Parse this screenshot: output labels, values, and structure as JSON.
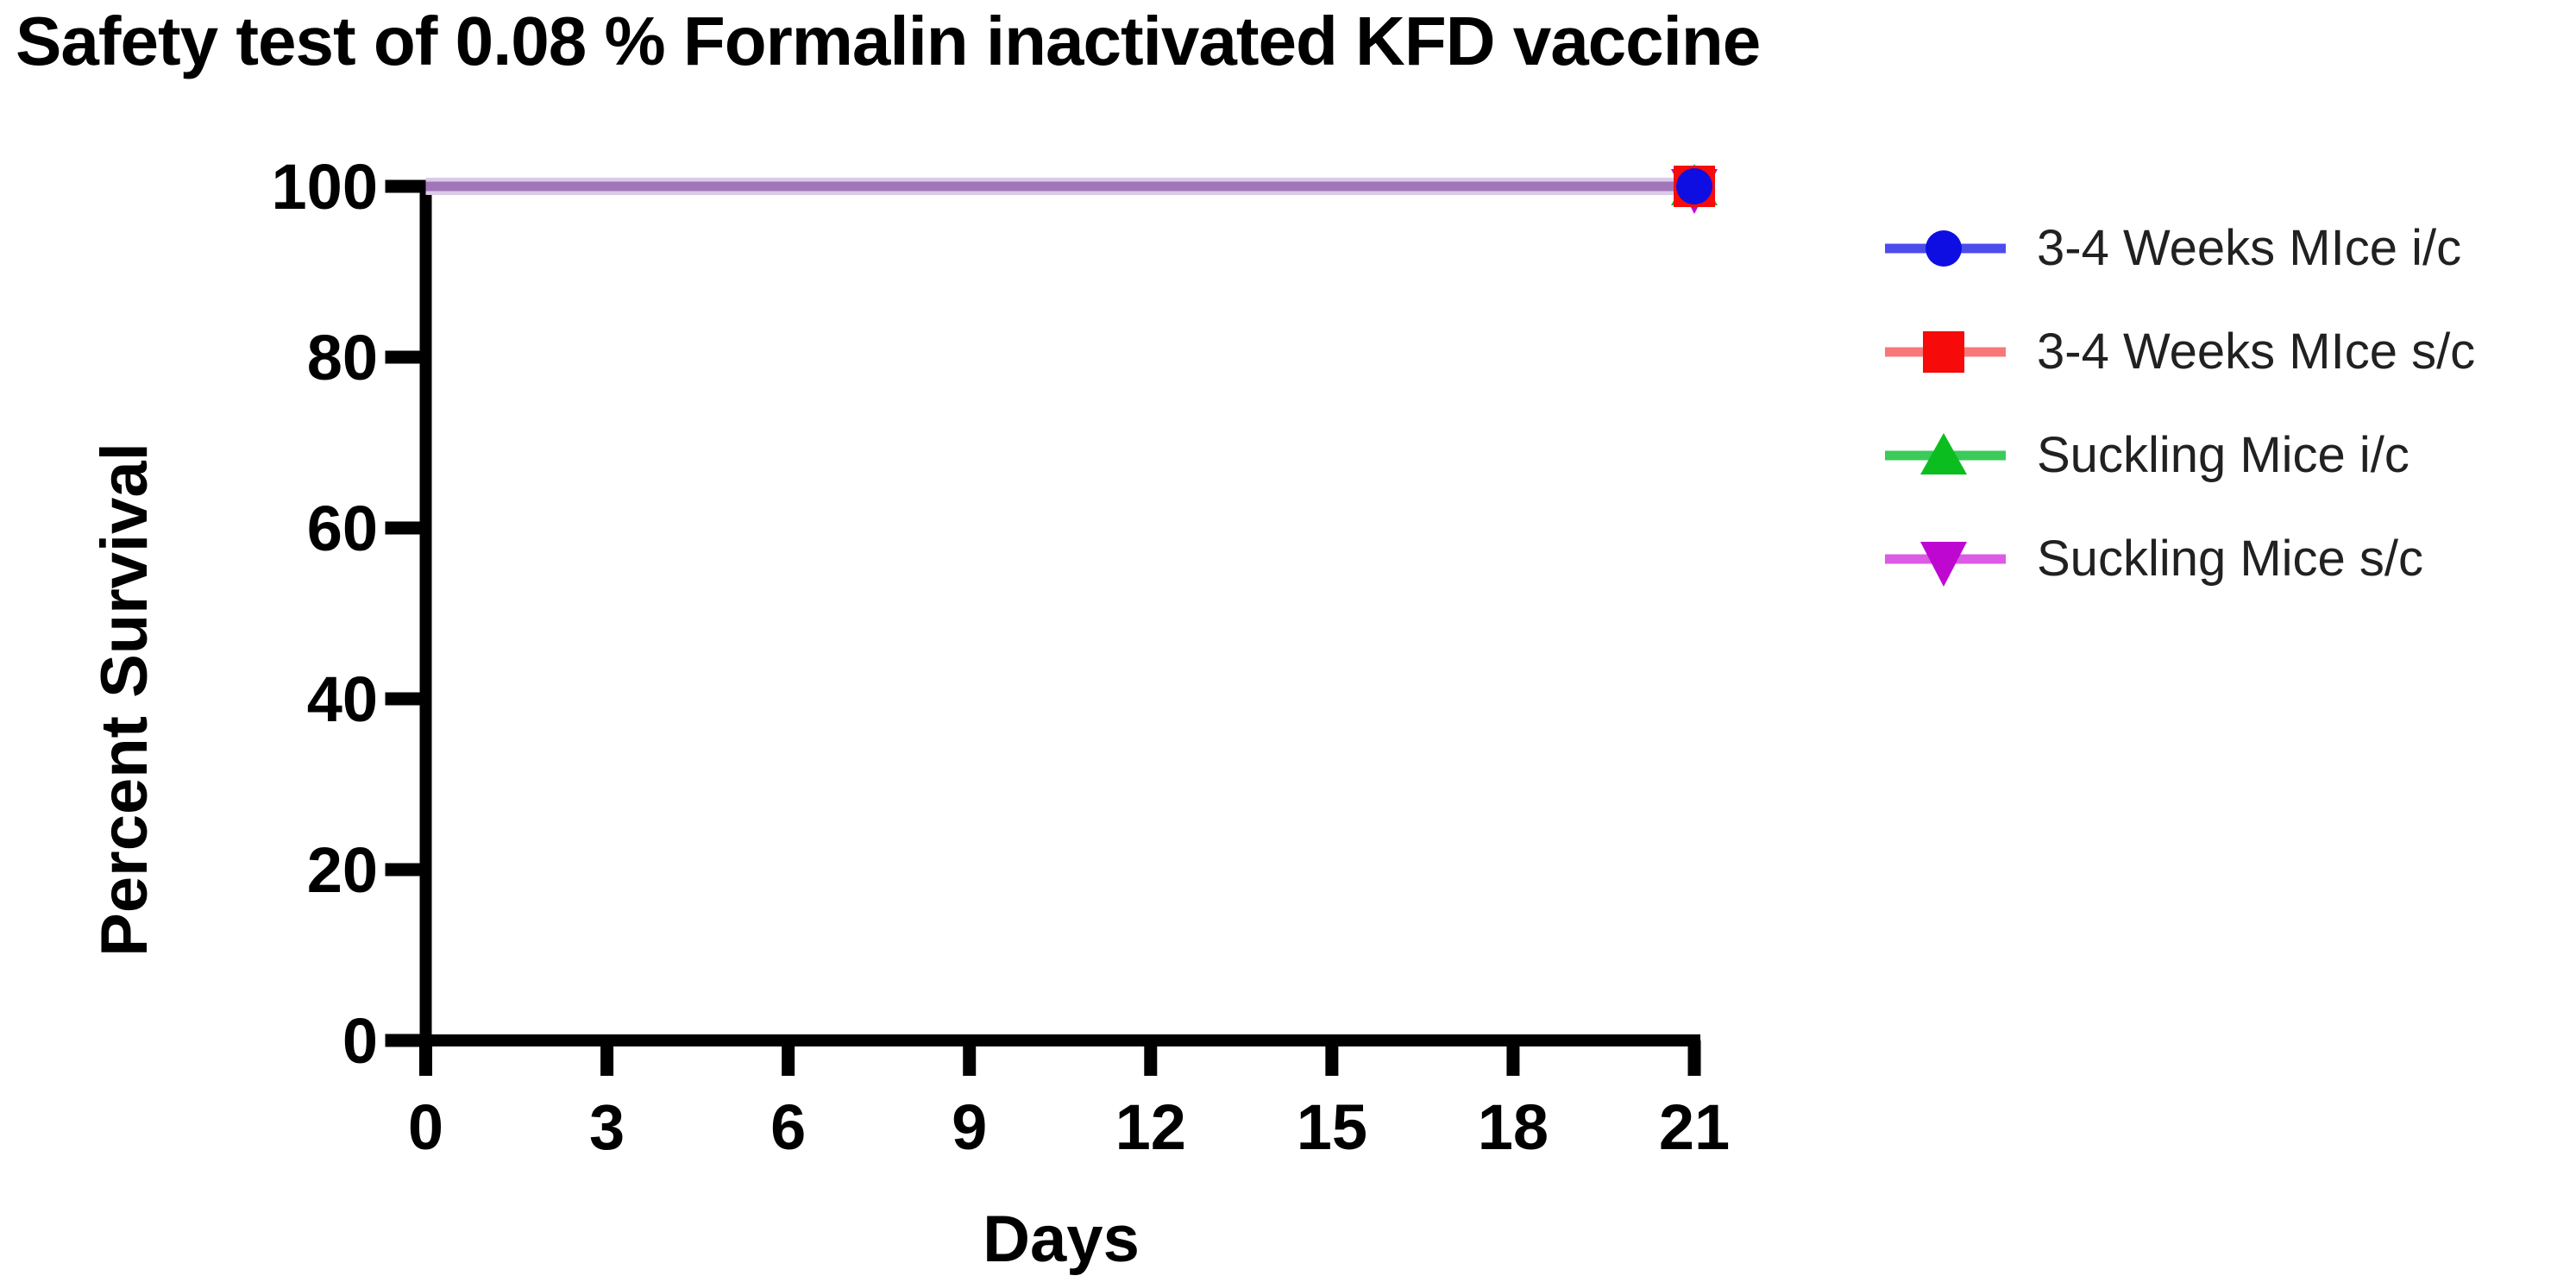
{
  "chart_data": {
    "type": "line",
    "title": "Safety test of 0.08 % Formalin inactivated KFD vaccine",
    "xlabel": "Days",
    "ylabel": "Percent Survival",
    "xlim": [
      0,
      21
    ],
    "ylim": [
      0,
      100
    ],
    "xticks": [
      0,
      3,
      6,
      9,
      12,
      15,
      18,
      21
    ],
    "yticks": [
      0,
      20,
      40,
      60,
      80,
      100
    ],
    "grid": false,
    "legend_position": "right",
    "x": [
      0,
      21
    ],
    "series": [
      {
        "name": "3-4 Weeks MIce i/c",
        "values": [
          100,
          100
        ],
        "marker": "circle",
        "color": "#0E0EE2",
        "line_color": "#4C4CEC"
      },
      {
        "name": "3-4 Weeks MIce s/c",
        "values": [
          100,
          100
        ],
        "marker": "square",
        "color": "#F60A0A",
        "line_color": "#F87878"
      },
      {
        "name": "Suckling Mice i/c",
        "values": [
          100,
          100
        ],
        "marker": "triangle-up",
        "color": "#0CBD20",
        "line_color": "#3ACB58"
      },
      {
        "name": "Suckling Mice s/c",
        "values": [
          100,
          100
        ],
        "marker": "triangle-down",
        "color": "#BE08D2",
        "line_color": "#DC5BE4"
      }
    ],
    "overlap_line_color": "#A076B8",
    "overlap_line_halo": "#DCC9E8",
    "axis_color": "#000000"
  }
}
